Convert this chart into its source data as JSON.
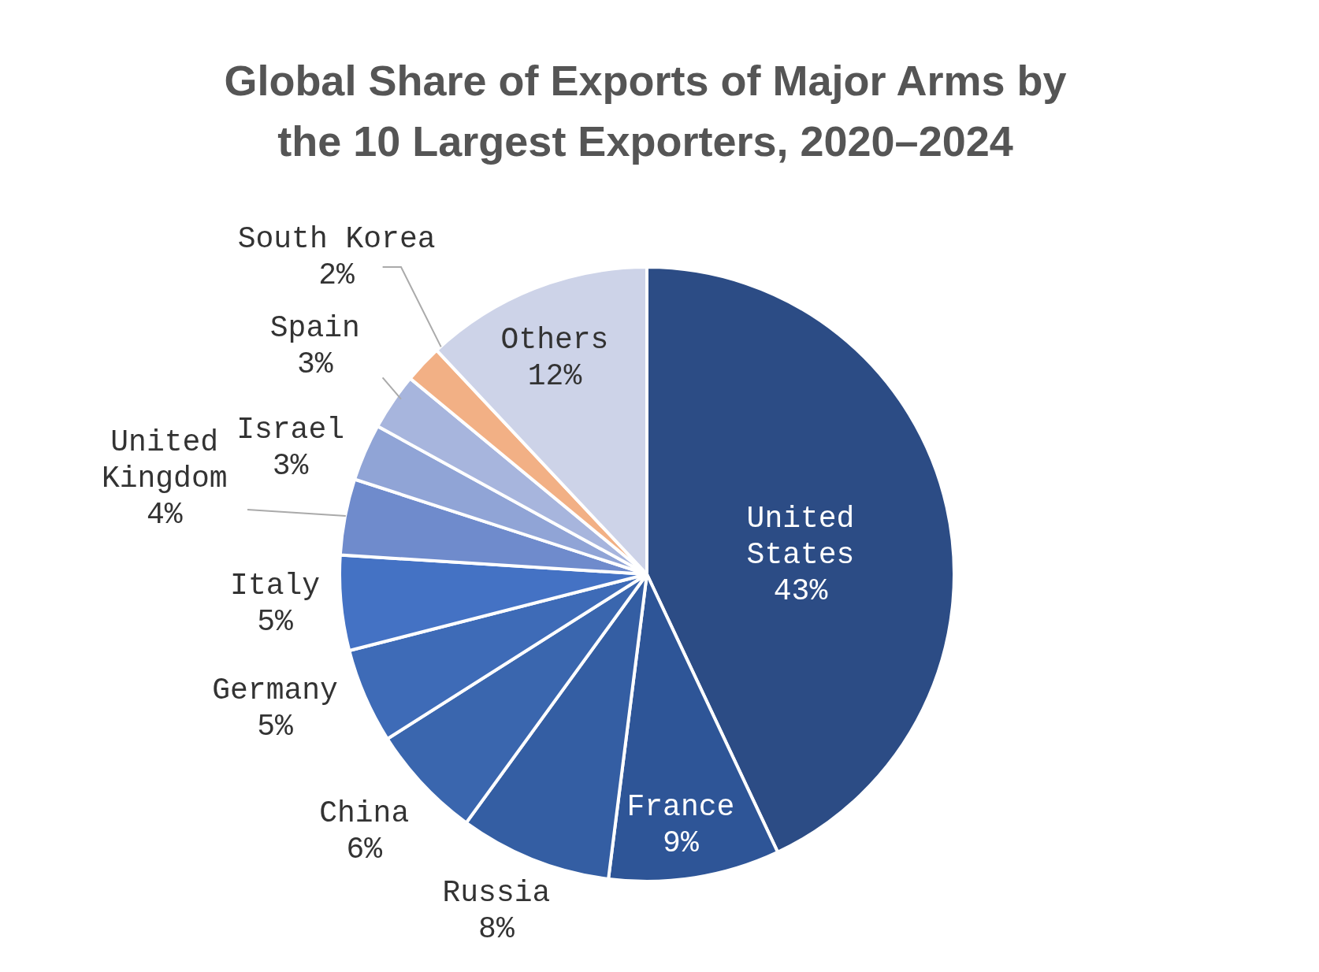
{
  "chart_data": {
    "type": "pie",
    "title": "Global Share of Exports of Major Arms by the 10 Largest Exporters, 2020–2024",
    "categories": [
      "United States",
      "France",
      "Russia",
      "China",
      "Germany",
      "Italy",
      "United Kingdom",
      "Israel",
      "Spain",
      "South Korea",
      "Others"
    ],
    "values": [
      43,
      9,
      8,
      6,
      5,
      5,
      4,
      3,
      3,
      2,
      12
    ],
    "value_labels": [
      "43%",
      "9%",
      "8%",
      "6%",
      "5%",
      "5%",
      "4%",
      "3%",
      "3%",
      "2%",
      "12%"
    ],
    "colors": [
      "#2c4c85",
      "#2e5597",
      "#345ea3",
      "#3a66ae",
      "#3e6bb7",
      "#4472c4",
      "#6f8bcc",
      "#90a4d6",
      "#a7b5dd",
      "#f2b085",
      "#cdd3e8"
    ]
  }
}
